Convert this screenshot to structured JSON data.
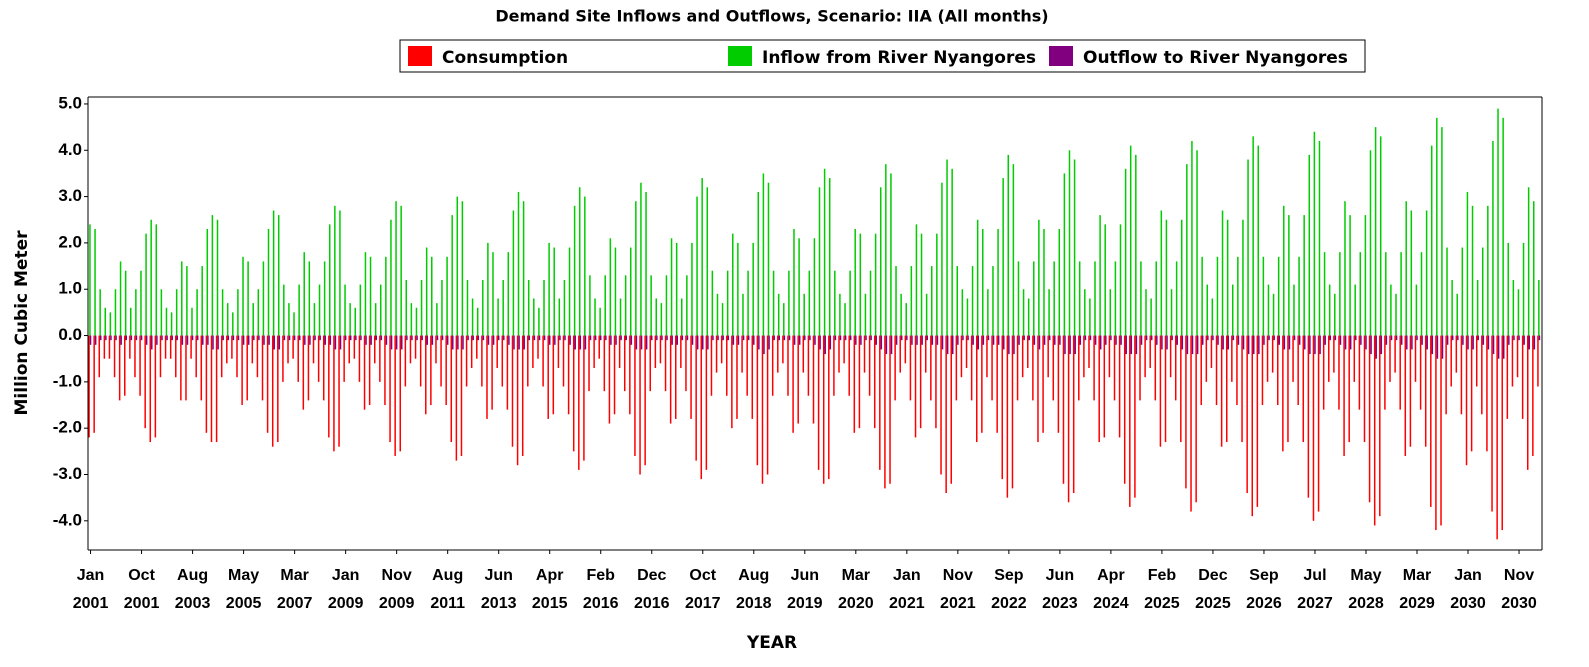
{
  "chart_data": {
    "type": "bar",
    "title": "Demand Site Inflows and Outflows, Scenario: IIA (All months)",
    "y_label": "Million Cubic Meter",
    "x_label": "YEAR",
    "ylim": [
      -4.63,
      5.15
    ],
    "yticks": [
      {
        "value": 5,
        "label": "5.0"
      },
      {
        "value": 4,
        "label": "4.0"
      },
      {
        "value": 3,
        "label": "3.0"
      },
      {
        "value": 2,
        "label": "2.0"
      },
      {
        "value": 1,
        "label": "1.0"
      },
      {
        "value": 0,
        "label": "0.0"
      },
      {
        "value": -1,
        "label": "-1.0"
      },
      {
        "value": -2,
        "label": "-2.0"
      },
      {
        "value": -3,
        "label": "-3.0"
      },
      {
        "value": -4,
        "label": "-4.0"
      }
    ],
    "categories": [
      "Jan 2001",
      null,
      null,
      null,
      null,
      null,
      null,
      null,
      null,
      null,
      "Oct 2001",
      null,
      null,
      null,
      null,
      null,
      null,
      null,
      null,
      null,
      "Aug 2003",
      null,
      null,
      null,
      null,
      null,
      null,
      null,
      null,
      null,
      "May 2005",
      null,
      null,
      null,
      null,
      null,
      null,
      null,
      null,
      null,
      "Mar 2007",
      null,
      null,
      null,
      null,
      null,
      null,
      null,
      null,
      null,
      "Jan 2009",
      null,
      null,
      null,
      null,
      null,
      null,
      null,
      null,
      null,
      "Nov 2009",
      null,
      null,
      null,
      null,
      null,
      null,
      null,
      null,
      null,
      "Aug 2011",
      null,
      null,
      null,
      null,
      null,
      null,
      null,
      null,
      null,
      "Jun 2013",
      null,
      null,
      null,
      null,
      null,
      null,
      null,
      null,
      null,
      "Apr 2015",
      null,
      null,
      null,
      null,
      null,
      null,
      null,
      null,
      null,
      "Feb 2016",
      null,
      null,
      null,
      null,
      null,
      null,
      null,
      null,
      null,
      "Dec 2016",
      null,
      null,
      null,
      null,
      null,
      null,
      null,
      null,
      null,
      "Oct 2017",
      null,
      null,
      null,
      null,
      null,
      null,
      null,
      null,
      null,
      "Aug 2018",
      null,
      null,
      null,
      null,
      null,
      null,
      null,
      null,
      null,
      "Jun 2019",
      null,
      null,
      null,
      null,
      null,
      null,
      null,
      null,
      null,
      "Mar 2020",
      null,
      null,
      null,
      null,
      null,
      null,
      null,
      null,
      null,
      "Jan 2021",
      null,
      null,
      null,
      null,
      null,
      null,
      null,
      null,
      null,
      "Nov 2021",
      null,
      null,
      null,
      null,
      null,
      null,
      null,
      null,
      null,
      "Sep 2022",
      null,
      null,
      null,
      null,
      null,
      null,
      null,
      null,
      null,
      "Jun 2023",
      null,
      null,
      null,
      null,
      null,
      null,
      null,
      null,
      null,
      "Apr 2024",
      null,
      null,
      null,
      null,
      null,
      null,
      null,
      null,
      null,
      "Feb 2025",
      null,
      null,
      null,
      null,
      null,
      null,
      null,
      null,
      null,
      "Dec 2025",
      null,
      null,
      null,
      null,
      null,
      null,
      null,
      null,
      null,
      "Sep 2026",
      null,
      null,
      null,
      null,
      null,
      null,
      null,
      null,
      null,
      "Jul 2027",
      null,
      null,
      null,
      null,
      null,
      null,
      null,
      null,
      null,
      "May 2028",
      null,
      null,
      null,
      null,
      null,
      null,
      null,
      null,
      null,
      "Mar 2029",
      null,
      null,
      null,
      null,
      null,
      null,
      null,
      null,
      null,
      "Jan 2030",
      null,
      null,
      null,
      null,
      null,
      null,
      null,
      null,
      null,
      "Nov 2030",
      null,
      null,
      null,
      null
    ],
    "series": [
      {
        "name": "Consumption",
        "color": "#ff0000",
        "values": [
          -2.2,
          -2.1,
          -0.9,
          -0.5,
          -0.5,
          -0.9,
          -1.4,
          -1.3,
          -0.5,
          -0.9,
          -1.3,
          -2.0,
          -2.3,
          -2.2,
          -0.9,
          -0.5,
          -0.5,
          -0.9,
          -1.4,
          -1.4,
          -0.5,
          -0.9,
          -1.4,
          -2.1,
          -2.3,
          -2.3,
          -0.9,
          -0.6,
          -0.5,
          -0.9,
          -1.5,
          -1.4,
          -0.6,
          -0.9,
          -1.4,
          -2.1,
          -2.4,
          -2.3,
          -1.0,
          -0.6,
          -0.5,
          -1.0,
          -1.6,
          -1.4,
          -0.6,
          -1.0,
          -1.4,
          -2.2,
          -2.5,
          -2.4,
          -1.0,
          -0.6,
          -0.5,
          -1.0,
          -1.6,
          -1.5,
          -0.6,
          -1.0,
          -1.5,
          -2.3,
          -2.6,
          -2.5,
          -1.1,
          -0.6,
          -0.5,
          -1.1,
          -1.7,
          -1.5,
          -0.6,
          -1.1,
          -1.5,
          -2.3,
          -2.7,
          -2.6,
          -1.1,
          -0.7,
          -0.5,
          -1.1,
          -1.8,
          -1.6,
          -0.7,
          -1.1,
          -1.6,
          -2.4,
          -2.8,
          -2.6,
          -1.1,
          -0.7,
          -0.5,
          -1.1,
          -1.8,
          -1.7,
          -0.7,
          -1.1,
          -1.7,
          -2.5,
          -2.9,
          -2.7,
          -1.2,
          -0.7,
          -0.5,
          -1.2,
          -1.9,
          -1.7,
          -0.7,
          -1.2,
          -1.7,
          -2.6,
          -3.0,
          -2.8,
          -1.2,
          -0.7,
          -0.6,
          -1.2,
          -1.9,
          -1.8,
          -0.7,
          -1.2,
          -1.8,
          -2.7,
          -3.1,
          -2.9,
          -1.3,
          -0.8,
          -0.6,
          -1.3,
          -2.0,
          -1.8,
          -0.8,
          -1.3,
          -1.8,
          -2.8,
          -3.2,
          -3.0,
          -1.3,
          -0.8,
          -0.6,
          -1.3,
          -2.1,
          -1.9,
          -0.8,
          -1.3,
          -1.9,
          -2.9,
          -3.2,
          -3.1,
          -1.3,
          -0.8,
          -0.6,
          -1.3,
          -2.1,
          -2.0,
          -0.8,
          -1.3,
          -2.0,
          -2.9,
          -3.3,
          -3.2,
          -1.4,
          -0.8,
          -0.6,
          -1.4,
          -2.2,
          -2.0,
          -0.8,
          -1.4,
          -2.0,
          -3.0,
          -3.4,
          -3.2,
          -1.4,
          -0.9,
          -0.7,
          -1.4,
          -2.3,
          -2.1,
          -0.9,
          -1.4,
          -2.1,
          -3.1,
          -3.5,
          -3.3,
          -1.4,
          -0.9,
          -0.7,
          -1.4,
          -2.3,
          -2.1,
          -0.9,
          -1.4,
          -2.1,
          -3.2,
          -3.6,
          -3.4,
          -1.4,
          -0.9,
          -0.7,
          -1.4,
          -2.3,
          -2.2,
          -0.9,
          -1.4,
          -2.2,
          -3.2,
          -3.7,
          -3.5,
          -1.4,
          -0.9,
          -0.7,
          -1.4,
          -2.4,
          -2.3,
          -0.9,
          -1.4,
          -2.3,
          -3.3,
          -3.8,
          -3.6,
          -1.5,
          -1.0,
          -0.7,
          -1.5,
          -2.4,
          -2.3,
          -1.0,
          -1.5,
          -2.3,
          -3.4,
          -3.9,
          -3.7,
          -1.5,
          -1.0,
          -0.8,
          -1.5,
          -2.5,
          -2.3,
          -1.0,
          -1.5,
          -2.3,
          -3.5,
          -4.0,
          -3.8,
          -1.6,
          -1.0,
          -0.8,
          -1.6,
          -2.6,
          -2.3,
          -1.0,
          -1.6,
          -2.3,
          -3.6,
          -4.1,
          -3.9,
          -1.6,
          -1.0,
          -0.8,
          -1.6,
          -2.6,
          -2.4,
          -1.0,
          -1.6,
          -2.4,
          -3.7,
          -4.2,
          -4.1,
          -1.7,
          -1.1,
          -0.8,
          -1.7,
          -2.8,
          -2.5,
          -1.1,
          -1.7,
          -2.5,
          -3.8,
          -4.4,
          -4.2,
          -1.8,
          -1.1,
          -0.9,
          -1.8,
          -2.9,
          -2.6,
          -1.1
        ]
      },
      {
        "name": "Inflow from River Nyangores",
        "color": "#00cc00",
        "values": [
          2.4,
          2.3,
          1.0,
          0.6,
          0.5,
          1.0,
          1.6,
          1.4,
          0.6,
          1.0,
          1.4,
          2.2,
          2.5,
          2.4,
          1.0,
          0.6,
          0.5,
          1.0,
          1.6,
          1.5,
          0.6,
          1.0,
          1.5,
          2.3,
          2.6,
          2.5,
          1.0,
          0.7,
          0.5,
          1.0,
          1.7,
          1.6,
          0.7,
          1.0,
          1.6,
          2.3,
          2.7,
          2.6,
          1.1,
          0.7,
          0.5,
          1.1,
          1.8,
          1.6,
          0.7,
          1.1,
          1.6,
          2.4,
          2.8,
          2.7,
          1.1,
          0.7,
          0.6,
          1.1,
          1.8,
          1.7,
          0.7,
          1.1,
          1.7,
          2.5,
          2.9,
          2.8,
          1.2,
          0.7,
          0.6,
          1.2,
          1.9,
          1.7,
          0.7,
          1.2,
          1.7,
          2.6,
          3.0,
          2.9,
          1.2,
          0.8,
          0.6,
          1.2,
          2.0,
          1.8,
          0.8,
          1.2,
          1.8,
          2.7,
          3.1,
          2.9,
          1.2,
          0.8,
          0.6,
          1.2,
          2.0,
          1.9,
          0.8,
          1.2,
          1.9,
          2.8,
          3.2,
          3.0,
          1.3,
          0.8,
          0.6,
          1.3,
          2.1,
          1.9,
          0.8,
          1.3,
          1.9,
          2.9,
          3.3,
          3.1,
          1.3,
          0.8,
          0.7,
          1.3,
          2.1,
          2.0,
          0.8,
          1.3,
          2.0,
          3.0,
          3.4,
          3.2,
          1.4,
          0.9,
          0.7,
          1.4,
          2.2,
          2.0,
          0.9,
          1.4,
          2.0,
          3.1,
          3.5,
          3.3,
          1.4,
          0.9,
          0.7,
          1.4,
          2.3,
          2.1,
          0.9,
          1.4,
          2.1,
          3.2,
          3.6,
          3.4,
          1.4,
          0.9,
          0.7,
          1.4,
          2.3,
          2.2,
          0.9,
          1.4,
          2.2,
          3.2,
          3.7,
          3.5,
          1.5,
          0.9,
          0.7,
          1.5,
          2.4,
          2.2,
          0.9,
          1.5,
          2.2,
          3.3,
          3.8,
          3.6,
          1.5,
          1.0,
          0.8,
          1.5,
          2.5,
          2.3,
          1.0,
          1.5,
          2.3,
          3.4,
          3.9,
          3.7,
          1.6,
          1.0,
          0.8,
          1.6,
          2.5,
          2.3,
          1.0,
          1.6,
          2.3,
          3.5,
          4.0,
          3.8,
          1.6,
          1.0,
          0.8,
          1.6,
          2.6,
          2.4,
          1.0,
          1.6,
          2.4,
          3.6,
          4.1,
          3.9,
          1.6,
          1.0,
          0.8,
          1.6,
          2.7,
          2.5,
          1.0,
          1.6,
          2.5,
          3.7,
          4.2,
          4.0,
          1.7,
          1.1,
          0.8,
          1.7,
          2.7,
          2.5,
          1.1,
          1.7,
          2.5,
          3.8,
          4.3,
          4.1,
          1.7,
          1.1,
          0.9,
          1.7,
          2.8,
          2.6,
          1.1,
          1.7,
          2.6,
          3.9,
          4.4,
          4.2,
          1.8,
          1.1,
          0.9,
          1.8,
          2.9,
          2.6,
          1.1,
          1.8,
          2.6,
          4.0,
          4.5,
          4.3,
          1.8,
          1.1,
          0.9,
          1.8,
          2.9,
          2.7,
          1.1,
          1.8,
          2.7,
          4.1,
          4.7,
          4.5,
          1.9,
          1.2,
          0.9,
          1.9,
          3.1,
          2.8,
          1.2,
          1.9,
          2.8,
          4.2,
          4.9,
          4.7,
          2.0,
          1.2,
          1.0,
          2.0,
          3.2,
          2.9,
          1.2
        ]
      },
      {
        "name": "Outflow to River Nyangores",
        "color": "#800080",
        "values": [
          -0.2,
          -0.2,
          -0.1,
          -0.1,
          -0.1,
          -0.1,
          -0.2,
          -0.1,
          -0.1,
          -0.1,
          -0.1,
          -0.2,
          -0.3,
          -0.2,
          -0.1,
          -0.1,
          -0.1,
          -0.1,
          -0.2,
          -0.2,
          -0.1,
          -0.1,
          -0.2,
          -0.2,
          -0.3,
          -0.3,
          -0.1,
          -0.1,
          -0.1,
          -0.1,
          -0.2,
          -0.2,
          -0.1,
          -0.1,
          -0.2,
          -0.2,
          -0.3,
          -0.3,
          -0.1,
          -0.1,
          -0.1,
          -0.1,
          -0.2,
          -0.2,
          -0.1,
          -0.1,
          -0.2,
          -0.2,
          -0.3,
          -0.3,
          -0.1,
          -0.1,
          -0.1,
          -0.1,
          -0.2,
          -0.2,
          -0.1,
          -0.1,
          -0.2,
          -0.3,
          -0.3,
          -0.3,
          -0.1,
          -0.1,
          -0.1,
          -0.1,
          -0.2,
          -0.2,
          -0.1,
          -0.1,
          -0.2,
          -0.3,
          -0.3,
          -0.3,
          -0.1,
          -0.1,
          -0.1,
          -0.1,
          -0.2,
          -0.2,
          -0.1,
          -0.1,
          -0.2,
          -0.3,
          -0.3,
          -0.3,
          -0.1,
          -0.1,
          -0.1,
          -0.1,
          -0.2,
          -0.2,
          -0.1,
          -0.1,
          -0.2,
          -0.3,
          -0.3,
          -0.3,
          -0.1,
          -0.1,
          -0.1,
          -0.1,
          -0.2,
          -0.2,
          -0.1,
          -0.1,
          -0.2,
          -0.3,
          -0.3,
          -0.3,
          -0.1,
          -0.1,
          -0.1,
          -0.1,
          -0.2,
          -0.2,
          -0.1,
          -0.1,
          -0.2,
          -0.3,
          -0.3,
          -0.3,
          -0.1,
          -0.1,
          -0.1,
          -0.1,
          -0.2,
          -0.2,
          -0.1,
          -0.1,
          -0.2,
          -0.3,
          -0.4,
          -0.3,
          -0.1,
          -0.1,
          -0.1,
          -0.1,
          -0.2,
          -0.2,
          -0.1,
          -0.1,
          -0.2,
          -0.3,
          -0.4,
          -0.3,
          -0.1,
          -0.1,
          -0.1,
          -0.1,
          -0.2,
          -0.2,
          -0.1,
          -0.1,
          -0.2,
          -0.3,
          -0.4,
          -0.4,
          -0.2,
          -0.1,
          -0.1,
          -0.2,
          -0.2,
          -0.2,
          -0.1,
          -0.2,
          -0.2,
          -0.3,
          -0.4,
          -0.4,
          -0.2,
          -0.1,
          -0.1,
          -0.2,
          -0.3,
          -0.2,
          -0.1,
          -0.2,
          -0.2,
          -0.3,
          -0.4,
          -0.4,
          -0.2,
          -0.1,
          -0.1,
          -0.2,
          -0.3,
          -0.2,
          -0.1,
          -0.2,
          -0.2,
          -0.4,
          -0.4,
          -0.4,
          -0.2,
          -0.1,
          -0.1,
          -0.2,
          -0.3,
          -0.2,
          -0.1,
          -0.2,
          -0.2,
          -0.4,
          -0.4,
          -0.4,
          -0.2,
          -0.1,
          -0.1,
          -0.2,
          -0.3,
          -0.3,
          -0.1,
          -0.2,
          -0.3,
          -0.4,
          -0.4,
          -0.4,
          -0.2,
          -0.1,
          -0.1,
          -0.2,
          -0.3,
          -0.3,
          -0.1,
          -0.2,
          -0.3,
          -0.4,
          -0.4,
          -0.4,
          -0.2,
          -0.1,
          -0.1,
          -0.2,
          -0.3,
          -0.3,
          -0.1,
          -0.2,
          -0.3,
          -0.4,
          -0.4,
          -0.4,
          -0.2,
          -0.1,
          -0.1,
          -0.2,
          -0.3,
          -0.3,
          -0.1,
          -0.2,
          -0.3,
          -0.4,
          -0.5,
          -0.4,
          -0.2,
          -0.1,
          -0.1,
          -0.2,
          -0.3,
          -0.3,
          -0.1,
          -0.2,
          -0.3,
          -0.4,
          -0.5,
          -0.5,
          -0.2,
          -0.1,
          -0.1,
          -0.2,
          -0.3,
          -0.3,
          -0.1,
          -0.2,
          -0.3,
          -0.4,
          -0.5,
          -0.5,
          -0.2,
          -0.1,
          -0.1,
          -0.2,
          -0.3,
          -0.3,
          -0.1
        ]
      }
    ]
  }
}
